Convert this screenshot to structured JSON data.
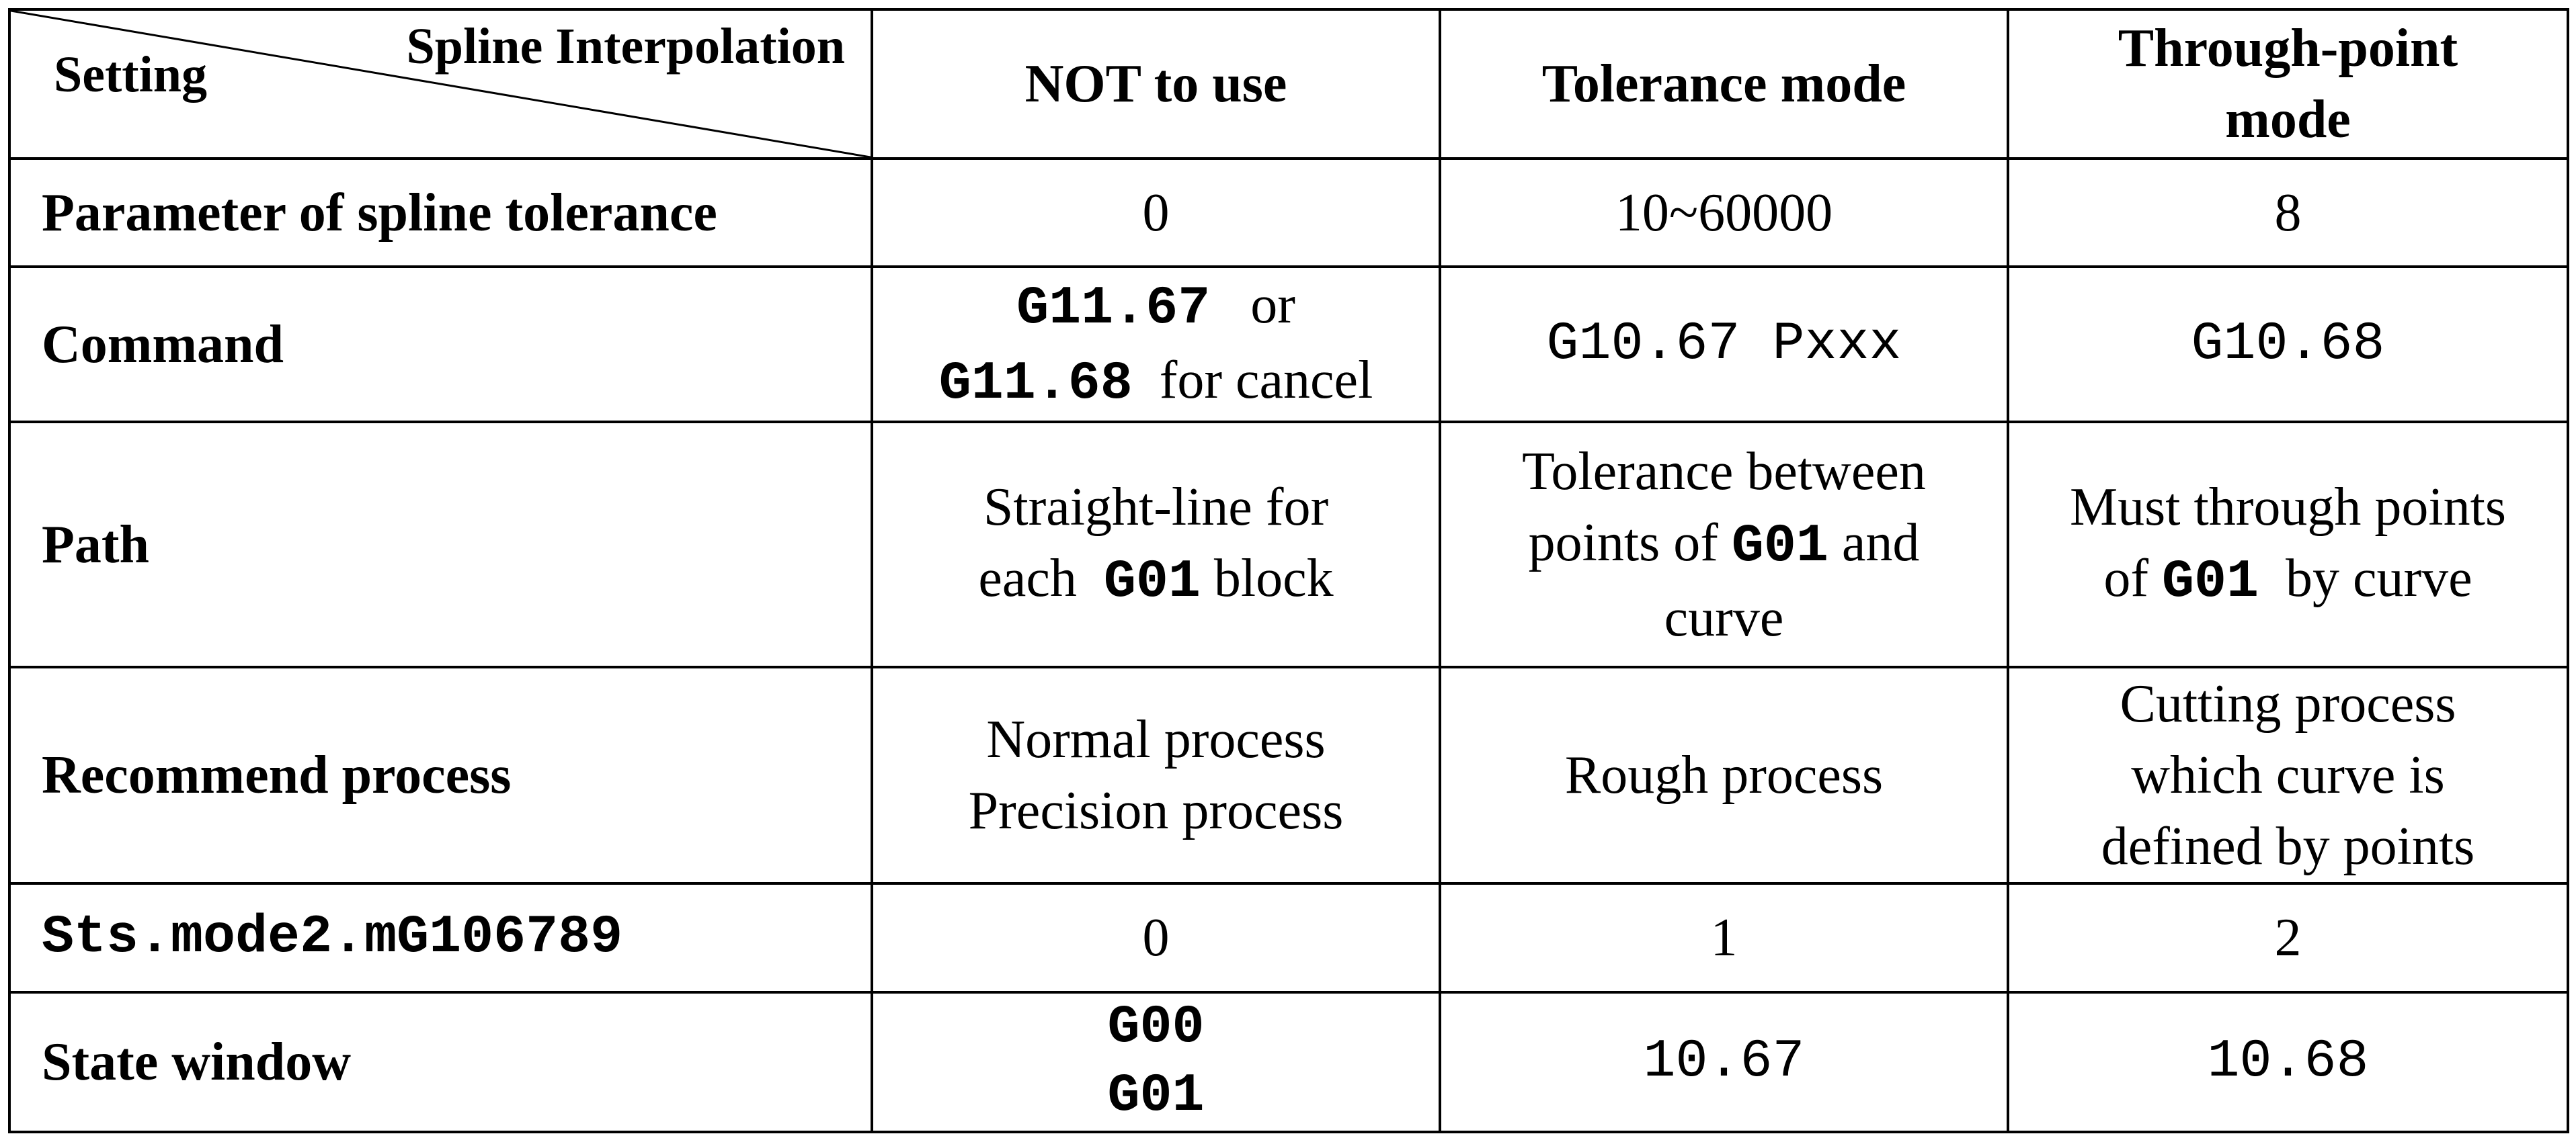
{
  "header": {
    "corner_top": "Spline Interpolation",
    "corner_bottom": "Setting",
    "columns": [
      "NOT to use",
      "Tolerance mode",
      "Through-point mode"
    ],
    "through_point_line1": "Through-point",
    "through_point_line2": "mode"
  },
  "rows": {
    "parameter": {
      "label": "Parameter of spline tolerance",
      "not_to_use": "0",
      "tolerance": "10~60000",
      "through_point": "8"
    },
    "command": {
      "label": "Command",
      "not_to_use_code1": "G11.67",
      "not_to_use_text1": "or",
      "not_to_use_code2": "G11.68",
      "not_to_use_text2": "for cancel",
      "tolerance": "G10.67 Pxxx",
      "through_point": "G10.68"
    },
    "path": {
      "label": "Path",
      "not_to_use_line1": "Straight-line for",
      "not_to_use_each": "each",
      "not_to_use_code": "G01",
      "not_to_use_block": "block",
      "tolerance_line1": "Tolerance between",
      "tolerance_points_of": "points of",
      "tolerance_code": "G01",
      "tolerance_and": "and",
      "tolerance_line3": "curve",
      "through_line1": "Must through points",
      "through_of": "of",
      "through_code": "G01",
      "through_by": "by curve"
    },
    "recommend": {
      "label": "Recommend process",
      "not_to_use_line1": "Normal process",
      "not_to_use_line2": "Precision process",
      "tolerance": "Rough process",
      "through_line1": "Cutting process",
      "through_line2": "which curve is",
      "through_line3": "defined by points"
    },
    "sts": {
      "label": "Sts.mode2.mG106789",
      "not_to_use": "0",
      "tolerance": "1",
      "through_point": "2"
    },
    "state_window": {
      "label": "State window",
      "not_to_use_line1": "G00",
      "not_to_use_line2": "G01",
      "tolerance": "10.67",
      "through_point": "10.68"
    }
  }
}
